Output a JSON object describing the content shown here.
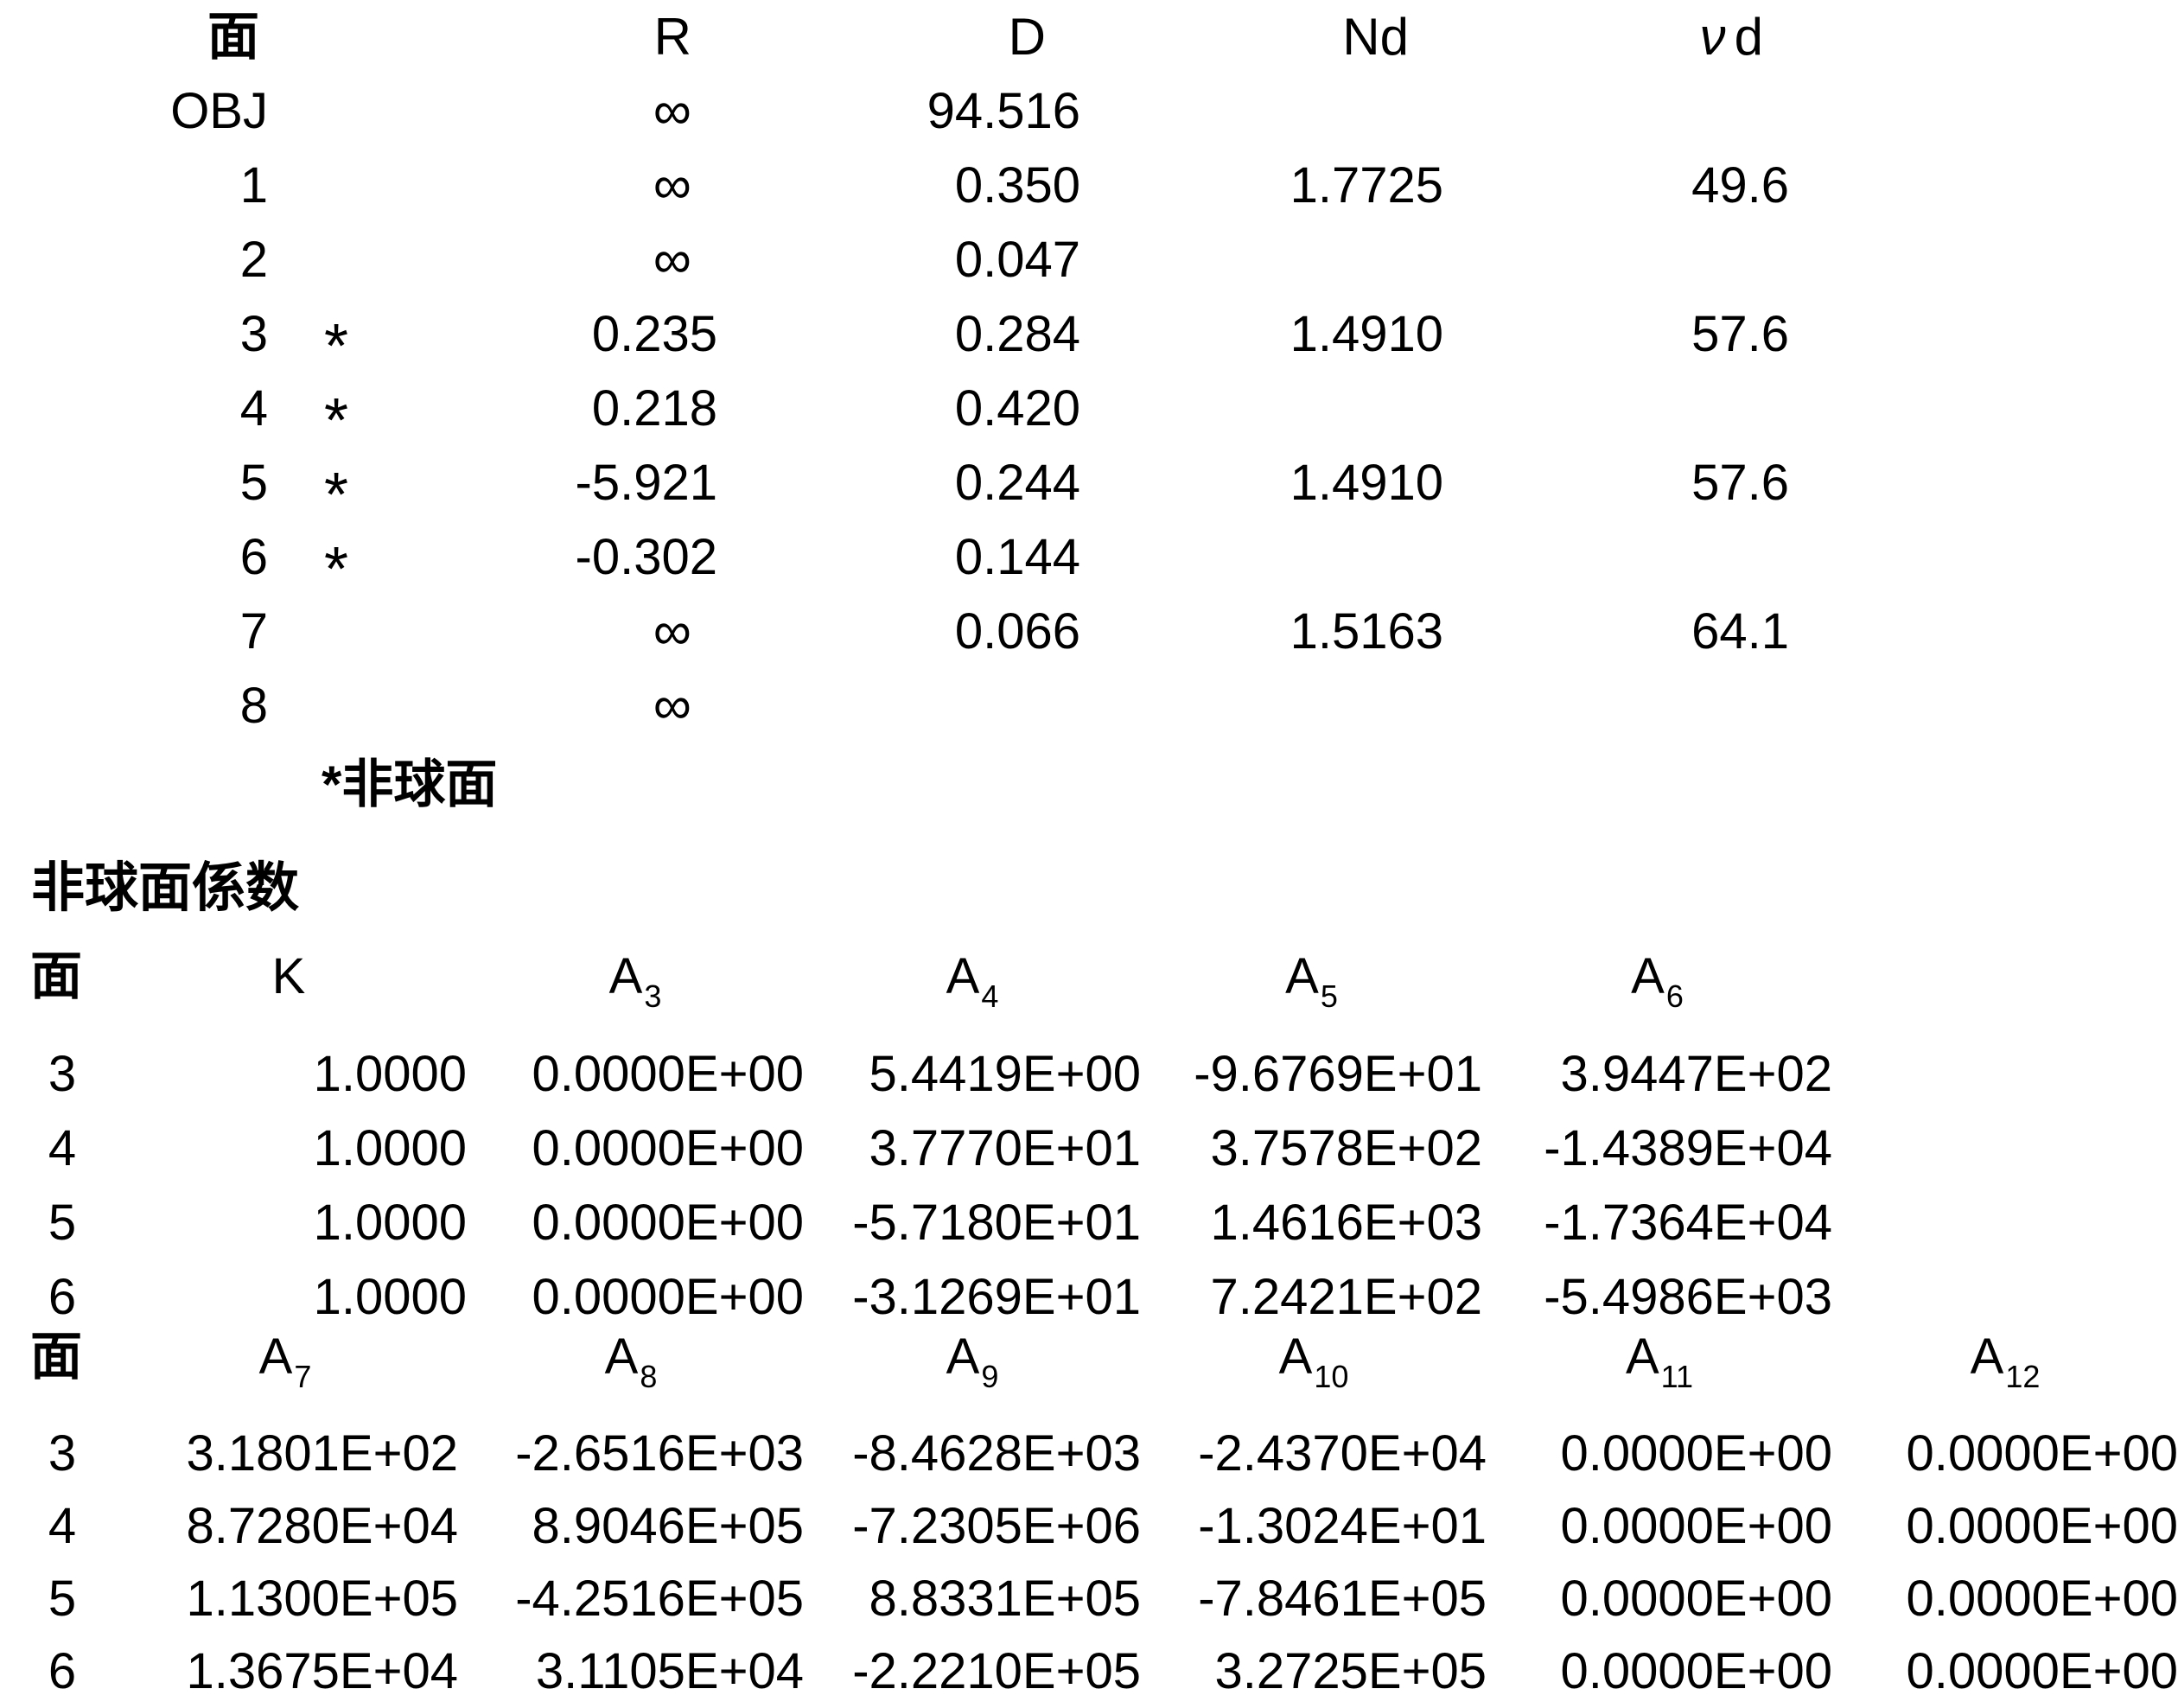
{
  "surface_table": {
    "headers": {
      "surface": "面",
      "radius": "R",
      "distance": "D",
      "index": "Nd",
      "abbe_nu": "ν",
      "abbe_d": "d"
    },
    "rows": [
      {
        "surface": "OBJ",
        "aspheric": "",
        "r": "∞",
        "d": "94.516",
        "nd": "",
        "vd": ""
      },
      {
        "surface": "1",
        "aspheric": "",
        "r": "∞",
        "d": "0.350",
        "nd": "1.7725",
        "vd": "49.6"
      },
      {
        "surface": "2",
        "aspheric": "",
        "r": "∞",
        "d": "0.047",
        "nd": "",
        "vd": ""
      },
      {
        "surface": "3",
        "aspheric": "*",
        "r": "0.235",
        "d": "0.284",
        "nd": "1.4910",
        "vd": "57.6"
      },
      {
        "surface": "4",
        "aspheric": "*",
        "r": "0.218",
        "d": "0.420",
        "nd": "",
        "vd": ""
      },
      {
        "surface": "5",
        "aspheric": "*",
        "r": "-5.921",
        "d": "0.244",
        "nd": "1.4910",
        "vd": "57.6"
      },
      {
        "surface": "6",
        "aspheric": "*",
        "r": "-0.302",
        "d": "0.144",
        "nd": "",
        "vd": ""
      },
      {
        "surface": "7",
        "aspheric": "",
        "r": "∞",
        "d": "0.066",
        "nd": "1.5163",
        "vd": "64.1"
      },
      {
        "surface": "8",
        "aspheric": "",
        "r": "∞",
        "d": "",
        "nd": "",
        "vd": ""
      }
    ],
    "footnote_label": "*非球面"
  },
  "aspheric": {
    "section_title": "非球面係数",
    "low_order": {
      "headers": [
        {
          "label": "面"
        },
        {
          "label": "K"
        },
        {
          "label": "A",
          "sub": "3"
        },
        {
          "label": "A",
          "sub": "4"
        },
        {
          "label": "A",
          "sub": "5"
        },
        {
          "label": "A",
          "sub": "6"
        }
      ],
      "rows": [
        {
          "surface": "3",
          "k": "1.0000",
          "a3": "0.0000E+00",
          "a4": "5.4419E+00",
          "a5": "-9.6769E+01",
          "a6": "3.9447E+02"
        },
        {
          "surface": "4",
          "k": "1.0000",
          "a3": "0.0000E+00",
          "a4": "3.7770E+01",
          "a5": "3.7578E+02",
          "a6": "-1.4389E+04"
        },
        {
          "surface": "5",
          "k": "1.0000",
          "a3": "0.0000E+00",
          "a4": "-5.7180E+01",
          "a5": "1.4616E+03",
          "a6": "-1.7364E+04"
        },
        {
          "surface": "6",
          "k": "1.0000",
          "a3": "0.0000E+00",
          "a4": "-3.1269E+01",
          "a5": "7.2421E+02",
          "a6": "-5.4986E+03"
        }
      ]
    },
    "high_order": {
      "headers": [
        {
          "label": "面"
        },
        {
          "label": "A",
          "sub": "7"
        },
        {
          "label": "A",
          "sub": "8"
        },
        {
          "label": "A",
          "sub": "9"
        },
        {
          "label": "A",
          "sub": "10"
        },
        {
          "label": "A",
          "sub": "11"
        },
        {
          "label": "A",
          "sub": "12"
        }
      ],
      "rows": [
        {
          "surface": "3",
          "a7": "3.1801E+02",
          "a8": "-2.6516E+03",
          "a9": "-8.4628E+03",
          "a10": "-2.4370E+04",
          "a11": "0.0000E+00",
          "a12": "0.0000E+00"
        },
        {
          "surface": "4",
          "a7": "8.7280E+04",
          "a8": "8.9046E+05",
          "a9": "-7.2305E+06",
          "a10": "-1.3024E+01",
          "a11": "0.0000E+00",
          "a12": "0.0000E+00"
        },
        {
          "surface": "5",
          "a7": "1.1300E+05",
          "a8": "-4.2516E+05",
          "a9": "8.8331E+05",
          "a10": "-7.8461E+05",
          "a11": "0.0000E+00",
          "a12": "0.0000E+00"
        },
        {
          "surface": "6",
          "a7": "1.3675E+04",
          "a8": "3.1105E+04",
          "a9": "-2.2210E+05",
          "a10": "3.2725E+05",
          "a11": "0.0000E+00",
          "a12": "0.0000E+00"
        }
      ]
    }
  }
}
